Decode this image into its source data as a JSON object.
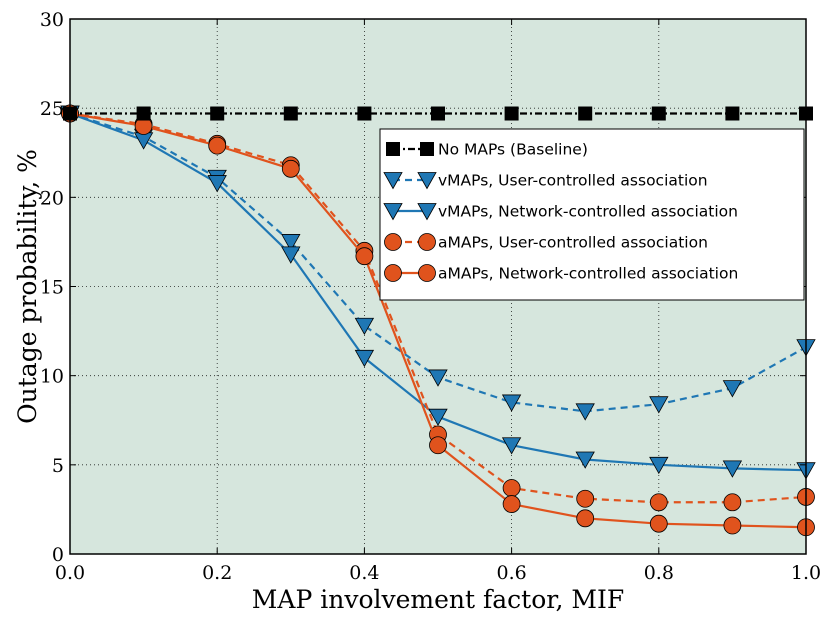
{
  "chart_data": {
    "type": "line",
    "title": "",
    "xlabel": "MAP involvement factor, MIF",
    "ylabel": "Outage probability, %",
    "xlim": [
      0.0,
      1.0
    ],
    "ylim": [
      0,
      30
    ],
    "xticks": [
      0.0,
      0.2,
      0.4,
      0.6,
      0.8,
      1.0
    ],
    "xtick_labels": [
      "0.0",
      "0.2",
      "0.4",
      "0.6",
      "0.8",
      "1.0"
    ],
    "yticks": [
      0,
      5,
      10,
      15,
      20,
      25,
      30
    ],
    "ytick_labels": [
      "0",
      "5",
      "10",
      "15",
      "20",
      "25",
      "30"
    ],
    "grid": true,
    "background": "#d6e6dd",
    "legend_position": "upper-right",
    "x": [
      0.0,
      0.1,
      0.2,
      0.3,
      0.4,
      0.5,
      0.6,
      0.7,
      0.8,
      0.9,
      1.0
    ],
    "series": [
      {
        "name": "No MAPs (Baseline)",
        "color": "#000000",
        "linestyle": "dashdot",
        "marker": "square",
        "values": [
          24.7,
          24.7,
          24.7,
          24.7,
          24.7,
          24.7,
          24.7,
          24.7,
          24.7,
          24.7,
          24.7
        ]
      },
      {
        "name": "vMAPs, User-controlled association",
        "color": "#1f77b4",
        "linestyle": "dashed",
        "marker": "triangle-down",
        "values": [
          24.7,
          23.4,
          21.1,
          17.5,
          12.8,
          9.9,
          8.5,
          8.0,
          8.4,
          9.3,
          11.6
        ]
      },
      {
        "name": "vMAPs, Network-controlled association",
        "color": "#1f77b4",
        "linestyle": "solid",
        "marker": "triangle-down",
        "values": [
          24.7,
          23.2,
          20.8,
          16.8,
          11.0,
          7.7,
          6.1,
          5.3,
          5.0,
          4.8,
          4.7
        ]
      },
      {
        "name": "aMAPs, User-controlled association",
        "color": "#e0531d",
        "linestyle": "dashed",
        "marker": "circle",
        "values": [
          24.7,
          24.1,
          23.0,
          21.8,
          17.0,
          6.7,
          3.7,
          3.1,
          2.9,
          2.9,
          3.2
        ]
      },
      {
        "name": "aMAPs, Network-controlled association",
        "color": "#e0531d",
        "linestyle": "solid",
        "marker": "circle",
        "values": [
          24.7,
          24.0,
          22.9,
          21.6,
          16.7,
          6.1,
          2.8,
          2.0,
          1.7,
          1.6,
          1.5
        ]
      }
    ]
  }
}
